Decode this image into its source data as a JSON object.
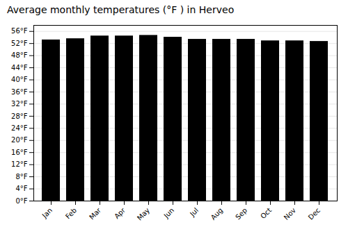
{
  "chart_data": {
    "type": "bar",
    "title": "Average monthly temperatures (°F ) in Herveo",
    "categories": [
      "Jan",
      "Feb",
      "Mar",
      "Apr",
      "May",
      "Jun",
      "Jul",
      "Aug",
      "Sep",
      "Oct",
      "Nov",
      "Dec"
    ],
    "values": [
      53.2,
      53.6,
      54.5,
      54.5,
      54.7,
      54.1,
      53.4,
      53.4,
      53.4,
      52.9,
      52.9,
      52.7
    ],
    "ylim": [
      0,
      58
    ],
    "yticks": [
      {
        "value": 0,
        "label": "0°F"
      },
      {
        "value": 4,
        "label": "4°F"
      },
      {
        "value": 8,
        "label": "8°F"
      },
      {
        "value": 12,
        "label": "12°F"
      },
      {
        "value": 16,
        "label": "16°F"
      },
      {
        "value": 20,
        "label": "20°F"
      },
      {
        "value": 24,
        "label": "24°F"
      },
      {
        "value": 28,
        "label": "28°F"
      },
      {
        "value": 32,
        "label": "32°F"
      },
      {
        "value": 36,
        "label": "36°F"
      },
      {
        "value": 40,
        "label": "40°F"
      },
      {
        "value": 44,
        "label": "44°F"
      },
      {
        "value": 48,
        "label": "48°F"
      },
      {
        "value": 52,
        "label": "52°F"
      },
      {
        "value": 56,
        "label": "56°F"
      }
    ],
    "grid": true
  }
}
